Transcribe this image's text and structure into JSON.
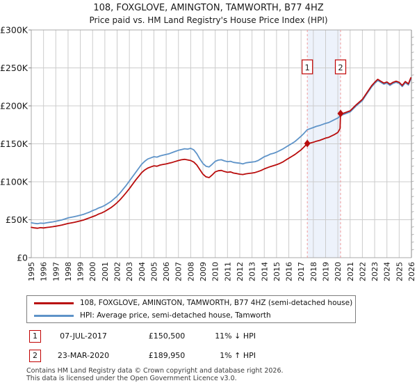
{
  "chart_data": {
    "type": "line",
    "title": "108, FOXGLOVE, AMINGTON, TAMWORTH, B77 4HZ",
    "subtitle": "Price paid vs. HM Land Registry's House Price Index (HPI)",
    "xlim": [
      1995,
      2026
    ],
    "ylim_gbp": [
      0,
      300000
    ],
    "values_unit": "GBP thousands",
    "grid": true,
    "x_ticks": [
      "1995",
      "1996",
      "1997",
      "1998",
      "1999",
      "2000",
      "2001",
      "2002",
      "2003",
      "2004",
      "2005",
      "2006",
      "2007",
      "2008",
      "2009",
      "2010",
      "2011",
      "2012",
      "2013",
      "2014",
      "2015",
      "2016",
      "2017",
      "2018",
      "2019",
      "2020",
      "2021",
      "2022",
      "2023",
      "2024",
      "2025",
      "2026"
    ],
    "y_ticks": [
      {
        "value": 0,
        "label": "£0"
      },
      {
        "value": 50,
        "label": "£50K"
      },
      {
        "value": 100,
        "label": "£100K"
      },
      {
        "value": 150,
        "label": "£150K"
      },
      {
        "value": 200,
        "label": "£200K"
      },
      {
        "value": 250,
        "label": "£250K"
      },
      {
        "value": 300,
        "label": "£300K"
      }
    ],
    "y_minor_tick_step": 10,
    "band": {
      "from": 2017.51,
      "to": 2020.22,
      "color": "#edf2fb"
    },
    "marker_line_color": "#f09a9a",
    "series": [
      {
        "name": "HPI: Average price, semi-detached house, Tamworth",
        "color": "#5e93c8",
        "points": [
          [
            1995,
            46
          ],
          [
            1995.25,
            45.3
          ],
          [
            1995.5,
            44.8
          ],
          [
            1995.75,
            45.5
          ],
          [
            1996,
            45.2
          ],
          [
            1996.25,
            46
          ],
          [
            1996.5,
            46.6
          ],
          [
            1996.75,
            47.2
          ],
          [
            1997,
            48
          ],
          [
            1997.25,
            48.8
          ],
          [
            1997.5,
            49.8
          ],
          [
            1997.75,
            51
          ],
          [
            1998,
            52.4
          ],
          [
            1998.25,
            53.2
          ],
          [
            1998.5,
            54
          ],
          [
            1998.75,
            55
          ],
          [
            1999,
            56
          ],
          [
            1999.25,
            57
          ],
          [
            1999.5,
            58.5
          ],
          [
            1999.75,
            60
          ],
          [
            2000,
            62
          ],
          [
            2000.25,
            63.5
          ],
          [
            2000.5,
            65.5
          ],
          [
            2000.75,
            67
          ],
          [
            2001,
            69
          ],
          [
            2001.25,
            71.5
          ],
          [
            2001.5,
            74
          ],
          [
            2001.75,
            77.5
          ],
          [
            2002,
            81
          ],
          [
            2002.25,
            85.5
          ],
          [
            2002.5,
            90.5
          ],
          [
            2002.75,
            95.5
          ],
          [
            2003,
            101
          ],
          [
            2003.25,
            106.5
          ],
          [
            2003.5,
            112
          ],
          [
            2003.75,
            117.5
          ],
          [
            2004,
            123
          ],
          [
            2004.25,
            127
          ],
          [
            2004.5,
            130
          ],
          [
            2004.75,
            131.5
          ],
          [
            2005,
            133
          ],
          [
            2005.25,
            132.5
          ],
          [
            2005.5,
            134
          ],
          [
            2005.75,
            135
          ],
          [
            2006,
            136
          ],
          [
            2006.25,
            137
          ],
          [
            2006.5,
            138.5
          ],
          [
            2006.75,
            140
          ],
          [
            2007,
            141.5
          ],
          [
            2007.25,
            142.5
          ],
          [
            2007.5,
            143.5
          ],
          [
            2007.75,
            143
          ],
          [
            2008,
            144
          ],
          [
            2008.25,
            142
          ],
          [
            2008.5,
            137
          ],
          [
            2008.75,
            130
          ],
          [
            2009,
            124
          ],
          [
            2009.25,
            120.5
          ],
          [
            2009.5,
            119.5
          ],
          [
            2009.75,
            123
          ],
          [
            2010,
            127
          ],
          [
            2010.25,
            128.5
          ],
          [
            2010.5,
            129
          ],
          [
            2010.75,
            127.5
          ],
          [
            2011,
            126.5
          ],
          [
            2011.25,
            127
          ],
          [
            2011.5,
            125.5
          ],
          [
            2011.75,
            125
          ],
          [
            2012,
            124.5
          ],
          [
            2012.25,
            123.5
          ],
          [
            2012.5,
            125
          ],
          [
            2012.75,
            125.5
          ],
          [
            2013,
            126
          ],
          [
            2013.25,
            126.5
          ],
          [
            2013.5,
            128
          ],
          [
            2013.75,
            130.5
          ],
          [
            2014,
            133
          ],
          [
            2014.25,
            134.5
          ],
          [
            2014.5,
            136.5
          ],
          [
            2014.75,
            137.5
          ],
          [
            2015,
            139
          ],
          [
            2015.25,
            141
          ],
          [
            2015.5,
            143
          ],
          [
            2015.75,
            145.5
          ],
          [
            2016,
            148
          ],
          [
            2016.25,
            150.5
          ],
          [
            2016.5,
            153
          ],
          [
            2016.75,
            156.5
          ],
          [
            2017,
            160
          ],
          [
            2017.25,
            164
          ],
          [
            2017.5,
            168.5
          ],
          [
            2017.75,
            170
          ],
          [
            2018,
            171.5
          ],
          [
            2018.25,
            173
          ],
          [
            2018.5,
            174
          ],
          [
            2018.75,
            175.5
          ],
          [
            2019,
            177
          ],
          [
            2019.25,
            178
          ],
          [
            2019.5,
            180
          ],
          [
            2019.75,
            182
          ],
          [
            2020,
            184
          ],
          [
            2020.25,
            187.5
          ],
          [
            2020.5,
            189
          ],
          [
            2020.75,
            190.5
          ],
          [
            2021,
            192
          ],
          [
            2021.25,
            196
          ],
          [
            2021.5,
            200
          ],
          [
            2021.75,
            203.5
          ],
          [
            2022,
            207
          ],
          [
            2022.25,
            213
          ],
          [
            2022.5,
            219
          ],
          [
            2022.75,
            225
          ],
          [
            2023,
            229.5
          ],
          [
            2023.25,
            233.5
          ],
          [
            2023.5,
            231
          ],
          [
            2023.75,
            228.5
          ],
          [
            2024,
            230
          ],
          [
            2024.25,
            227
          ],
          [
            2024.5,
            229.5
          ],
          [
            2024.75,
            231
          ],
          [
            2025,
            229.5
          ],
          [
            2025.25,
            225.5
          ],
          [
            2025.5,
            230.5
          ],
          [
            2025.75,
            227.5
          ],
          [
            2025.95,
            235.5
          ]
        ]
      },
      {
        "name": "108, FOXGLOVE, AMINGTON, TAMWORTH, B77 4HZ (semi-detached house)",
        "color": "#b90c0c",
        "points": [
          [
            1995,
            40
          ],
          [
            1995.25,
            39.3
          ],
          [
            1995.5,
            38.8
          ],
          [
            1995.75,
            39.5
          ],
          [
            1996,
            39.2
          ],
          [
            1996.25,
            39.8
          ],
          [
            1996.5,
            40.3
          ],
          [
            1996.75,
            40.8
          ],
          [
            1997,
            41.5
          ],
          [
            1997.25,
            42.2
          ],
          [
            1997.5,
            43
          ],
          [
            1997.75,
            44
          ],
          [
            1998,
            45
          ],
          [
            1998.25,
            45.8
          ],
          [
            1998.5,
            46.5
          ],
          [
            1998.75,
            47.5
          ],
          [
            1999,
            48.5
          ],
          [
            1999.25,
            49.5
          ],
          [
            1999.5,
            51
          ],
          [
            1999.75,
            52.5
          ],
          [
            2000,
            54
          ],
          [
            2000.25,
            55.5
          ],
          [
            2000.5,
            57.5
          ],
          [
            2000.75,
            59
          ],
          [
            2001,
            61
          ],
          [
            2001.25,
            63.5
          ],
          [
            2001.5,
            66
          ],
          [
            2001.75,
            69
          ],
          [
            2002,
            72.5
          ],
          [
            2002.25,
            76.5
          ],
          [
            2002.5,
            81
          ],
          [
            2002.75,
            86
          ],
          [
            2003,
            91
          ],
          [
            2003.25,
            96.5
          ],
          [
            2003.5,
            102
          ],
          [
            2003.75,
            107
          ],
          [
            2004,
            112
          ],
          [
            2004.25,
            115.5
          ],
          [
            2004.5,
            118
          ],
          [
            2004.75,
            119.5
          ],
          [
            2005,
            121
          ],
          [
            2005.25,
            120.5
          ],
          [
            2005.5,
            122
          ],
          [
            2005.75,
            122.8
          ],
          [
            2006,
            123.5
          ],
          [
            2006.25,
            124.5
          ],
          [
            2006.5,
            125.5
          ],
          [
            2006.75,
            126.8
          ],
          [
            2007,
            128
          ],
          [
            2007.25,
            129
          ],
          [
            2007.5,
            129.5
          ],
          [
            2007.75,
            128.8
          ],
          [
            2008,
            128
          ],
          [
            2008.25,
            126
          ],
          [
            2008.5,
            122
          ],
          [
            2008.75,
            116
          ],
          [
            2009,
            110
          ],
          [
            2009.25,
            106.5
          ],
          [
            2009.5,
            105.5
          ],
          [
            2009.75,
            109
          ],
          [
            2010,
            113
          ],
          [
            2010.25,
            114.5
          ],
          [
            2010.5,
            115
          ],
          [
            2010.75,
            113.5
          ],
          [
            2011,
            112.5
          ],
          [
            2011.25,
            113
          ],
          [
            2011.5,
            111.5
          ],
          [
            2011.75,
            110.8
          ],
          [
            2012,
            110
          ],
          [
            2012.25,
            109.5
          ],
          [
            2012.5,
            110.5
          ],
          [
            2012.75,
            111
          ],
          [
            2013,
            111.5
          ],
          [
            2013.25,
            112.2
          ],
          [
            2013.5,
            113.5
          ],
          [
            2013.75,
            115
          ],
          [
            2014,
            117
          ],
          [
            2014.25,
            118.5
          ],
          [
            2014.5,
            120
          ],
          [
            2014.75,
            121.2
          ],
          [
            2015,
            122.5
          ],
          [
            2015.25,
            124
          ],
          [
            2015.5,
            126
          ],
          [
            2015.75,
            128.5
          ],
          [
            2016,
            131
          ],
          [
            2016.25,
            133.5
          ],
          [
            2016.5,
            136
          ],
          [
            2016.75,
            139
          ],
          [
            2017,
            142
          ],
          [
            2017.25,
            146
          ],
          [
            2017.51,
            150.5
          ],
          [
            2017.75,
            151
          ],
          [
            2018,
            152
          ],
          [
            2018.25,
            153.5
          ],
          [
            2018.5,
            154.5
          ],
          [
            2018.75,
            156
          ],
          [
            2019,
            157.5
          ],
          [
            2019.25,
            158.5
          ],
          [
            2019.5,
            160.5
          ],
          [
            2019.75,
            162.5
          ],
          [
            2020,
            165
          ],
          [
            2020.18,
            170
          ],
          [
            2020.22,
            189.95
          ],
          [
            2020.5,
            190.5
          ],
          [
            2020.75,
            192
          ],
          [
            2021,
            193.5
          ],
          [
            2021.25,
            197.5
          ],
          [
            2021.5,
            201.5
          ],
          [
            2021.75,
            205
          ],
          [
            2022,
            208.5
          ],
          [
            2022.25,
            214.5
          ],
          [
            2022.5,
            220.5
          ],
          [
            2022.75,
            226.5
          ],
          [
            2023,
            231
          ],
          [
            2023.25,
            235
          ],
          [
            2023.5,
            232.5
          ],
          [
            2023.75,
            230
          ],
          [
            2024,
            231.5
          ],
          [
            2024.25,
            228.5
          ],
          [
            2024.5,
            231
          ],
          [
            2024.75,
            232.5
          ],
          [
            2025,
            231
          ],
          [
            2025.25,
            227
          ],
          [
            2025.5,
            232
          ],
          [
            2025.75,
            229
          ],
          [
            2025.95,
            237
          ]
        ]
      }
    ],
    "markers": [
      {
        "label": "1",
        "x": 2017.51,
        "y": 150.5
      },
      {
        "label": "2",
        "x": 2020.22,
        "y": 189.95
      }
    ]
  },
  "legend": {
    "items": [
      {
        "label": "108, FOXGLOVE, AMINGTON, TAMWORTH, B77 4HZ (semi-detached house)",
        "color": "#b90c0c"
      },
      {
        "label": "HPI: Average price, semi-detached house, Tamworth",
        "color": "#5e93c8"
      }
    ]
  },
  "transactions": [
    {
      "num": "1",
      "date": "07-JUL-2017",
      "price": "£150,500",
      "hpi": "11% ↓ HPI"
    },
    {
      "num": "2",
      "date": "23-MAR-2020",
      "price": "£189,950",
      "hpi": "1% ↑ HPI"
    }
  ],
  "footer": {
    "line1": "Contains HM Land Registry data © Crown copyright and database right 2026.",
    "line2": "This data is licensed under the Open Government Licence v3.0."
  }
}
